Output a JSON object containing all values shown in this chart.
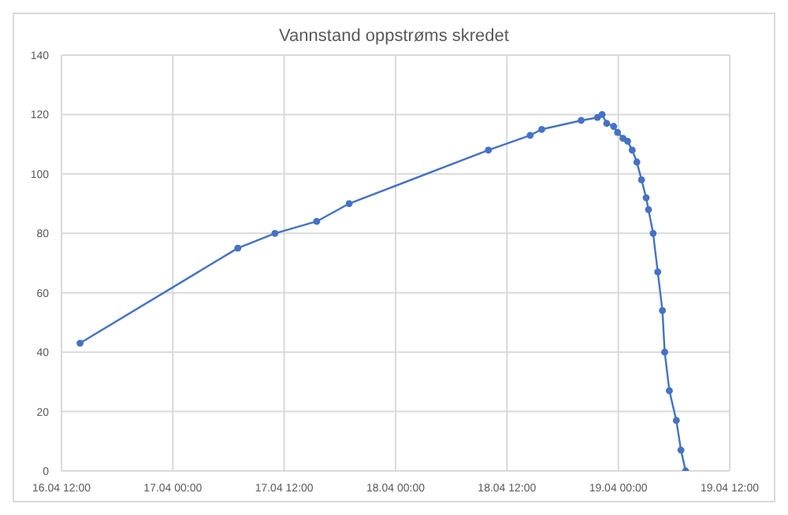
{
  "chart_data": {
    "type": "line",
    "title": "Vannstand oppstrøms skredet",
    "x": [
      "--04-16T14:00",
      "--04-17T07:00",
      "--04-17T11:00",
      "--04-17T15:30",
      "--04-17T19:00",
      "--04-18T10:00",
      "--04-18T14:30",
      "--04-18T15:45",
      "--04-18T20:00",
      "--04-18T21:45",
      "--04-18T22:15",
      "--04-18T22:45",
      "--04-18T23:30",
      "--04-18T23:55",
      "--04-19T00:30",
      "--04-19T01:00",
      "--04-19T01:30",
      "--04-19T02:00",
      "--04-19T02:30",
      "--04-19T03:00",
      "--04-19T03:15",
      "--04-19T03:45",
      "--04-19T04:15",
      "--04-19T04:45",
      "--04-19T05:00",
      "--04-19T05:30",
      "--04-19T06:15",
      "--04-19T06:45",
      "--04-19T07:15"
    ],
    "series": [
      {
        "color": "#4472c4",
        "values": [
          43,
          75,
          80,
          84,
          90,
          108,
          113,
          115,
          118,
          119,
          120,
          117,
          116,
          114,
          112,
          111,
          108,
          104,
          98,
          92,
          88,
          80,
          67,
          54,
          40,
          27,
          17,
          7,
          0
        ]
      }
    ],
    "xlim": [
      "--04-16T12:00",
      "--04-19T12:00"
    ],
    "xticks": [
      {
        "value": "--04-16T12:00",
        "label": "16.04 12:00"
      },
      {
        "value": "--04-17T00:00",
        "label": "17.04 00:00"
      },
      {
        "value": "--04-17T12:00",
        "label": "17.04 12:00"
      },
      {
        "value": "--04-18T00:00",
        "label": "18.04 00:00"
      },
      {
        "value": "--04-18T12:00",
        "label": "18.04 12:00"
      },
      {
        "value": "--04-19T00:00",
        "label": "19.04 00:00"
      },
      {
        "value": "--04-19T12:00",
        "label": "19.04 12:00"
      }
    ],
    "ylim": [
      0,
      140
    ],
    "yticks": [
      0,
      20,
      40,
      60,
      80,
      100,
      120,
      140
    ],
    "grid": true,
    "marker": "circle",
    "line_style": "solid",
    "legend": false
  }
}
